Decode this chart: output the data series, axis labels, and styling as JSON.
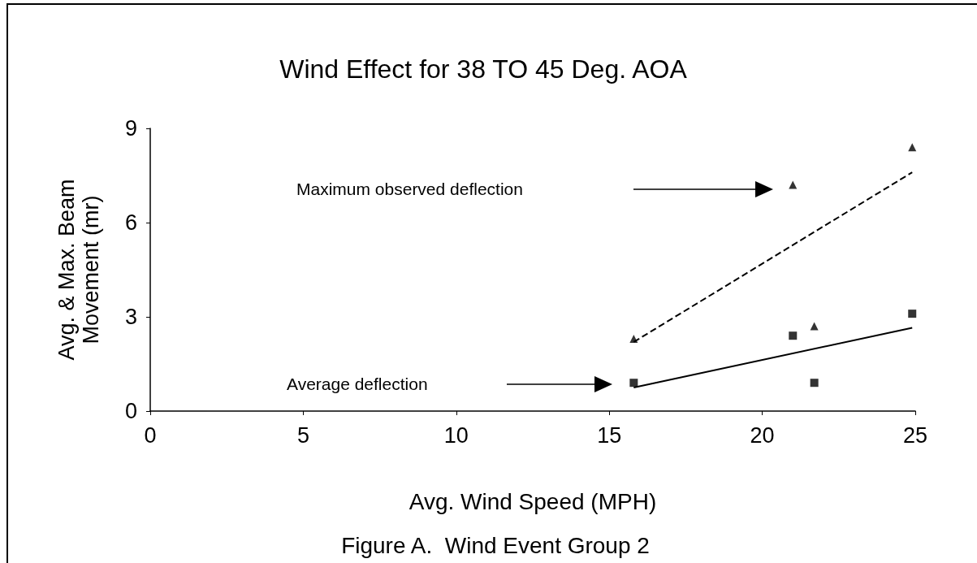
{
  "chart_data": {
    "type": "scatter",
    "title": "Wind Effect for 38 TO 45 Deg. AOA",
    "xlabel": "Avg. Wind Speed (MPH)",
    "ylabel": "Avg. & Max. Beam\nMovement (mr)",
    "annotations": [
      "Maximum observed deflection",
      "Average deflection",
      "Figure A.  Wind Event Group 2"
    ],
    "series": [
      {
        "marker": "triangle",
        "color": "#000000",
        "x": [
          15.8,
          21.0,
          21.7,
          24.9
        ],
        "values": [
          2.3,
          7.2,
          2.7,
          8.4
        ]
      },
      {
        "marker": "square",
        "color": "#000000",
        "x": [
          15.8,
          21.0,
          21.7,
          24.9
        ],
        "values": [
          0.9,
          2.4,
          0.9,
          3.1
        ]
      },
      {
        "type": "line",
        "marker": "none",
        "line_style": "dashed",
        "color": "#000000",
        "x": [
          15.8,
          24.9
        ],
        "values": [
          2.2,
          7.6
        ]
      },
      {
        "type": "line",
        "marker": "none",
        "line_style": "solid",
        "color": "#000000",
        "x": [
          15.8,
          24.9
        ],
        "values": [
          0.75,
          2.65
        ]
      }
    ],
    "xlim": [
      0,
      25
    ],
    "xticks": [
      0,
      5,
      10,
      15,
      20,
      25
    ],
    "ylim": [
      0,
      9
    ],
    "yticks": [
      0,
      3,
      6,
      9
    ],
    "grid": false
  }
}
